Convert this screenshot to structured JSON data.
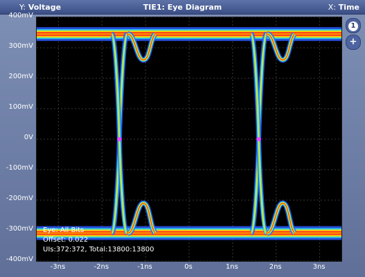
{
  "header": {
    "y_label_key": "Y:",
    "y_label": "Voltage",
    "title": "TIE1: Eye Diagram",
    "x_label_key": "X:",
    "x_label": "Time"
  },
  "sidebar": {
    "info_label": "1",
    "add_label": "+"
  },
  "axes": {
    "y_ticks": [
      "400mV",
      "300mV",
      "200mV",
      "100mV",
      "0V",
      "-100mV",
      "-200mV",
      "-300mV",
      "-400mV"
    ],
    "x_ticks": [
      "-3ns",
      "-2ns",
      "-1ns",
      "0s",
      "1ns",
      "2ns",
      "3ns"
    ]
  },
  "overlay": {
    "line1": "Eye: All Bits",
    "line2": "Offset: 0.022",
    "line3": "UIs:372:372, Total:13800:13800"
  },
  "chart_data": {
    "type": "eye-diagram",
    "y_unit": "mV",
    "x_unit": "ns",
    "xlim": [
      -3.5,
      3.5
    ],
    "ylim": [
      -400,
      400
    ],
    "high_level": 345,
    "low_level": -308,
    "overshoot_peak": 260,
    "undershoot_peak": -210,
    "crossings": [
      -1.6,
      1.6
    ],
    "crossing_level": 0,
    "grid": true,
    "colors": {
      "background": "#000000",
      "grid": "#3a3a3a",
      "outer": "#2a5bff",
      "mid": "#33e0e0",
      "inner": "#ffe000",
      "hot": "#ff3b1a",
      "crossing_marker": "#ff40ff"
    }
  }
}
